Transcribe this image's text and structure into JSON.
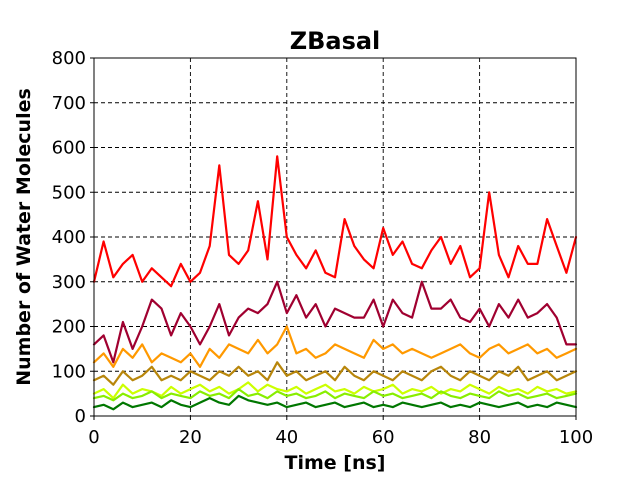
{
  "chart_data": {
    "type": "line",
    "title": "ZBasal",
    "xlabel": "Time [ns]",
    "ylabel": "Number of Water Molecules",
    "xlim": [
      0,
      100
    ],
    "ylim": [
      0,
      800
    ],
    "xticks": [
      0,
      20,
      40,
      60,
      80,
      100
    ],
    "yticks": [
      0,
      100,
      200,
      300,
      400,
      500,
      600,
      700,
      800
    ],
    "grid": true,
    "series": [
      {
        "color": "#ff0000",
        "x": [
          0,
          2,
          4,
          6,
          8,
          10,
          12,
          14,
          16,
          18,
          20,
          22,
          24,
          26,
          28,
          30,
          32,
          34,
          36,
          38,
          40,
          42,
          44,
          46,
          48,
          50,
          52,
          54,
          56,
          58,
          60,
          62,
          64,
          66,
          68,
          70,
          72,
          74,
          76,
          78,
          80,
          82,
          84,
          86,
          88,
          90,
          92,
          94,
          96,
          98,
          100
        ],
        "values": [
          300,
          390,
          310,
          340,
          360,
          300,
          330,
          310,
          290,
          340,
          300,
          320,
          380,
          560,
          360,
          340,
          370,
          480,
          350,
          580,
          400,
          360,
          330,
          370,
          320,
          310,
          440,
          380,
          350,
          330,
          420,
          360,
          390,
          340,
          330,
          370,
          400,
          340,
          380,
          310,
          330,
          500,
          360,
          310,
          380,
          340,
          340,
          440,
          380,
          320,
          400
        ]
      },
      {
        "color": "#a00030",
        "x": [
          0,
          2,
          4,
          6,
          8,
          10,
          12,
          14,
          16,
          18,
          20,
          22,
          24,
          26,
          28,
          30,
          32,
          34,
          36,
          38,
          40,
          42,
          44,
          46,
          48,
          50,
          52,
          54,
          56,
          58,
          60,
          62,
          64,
          66,
          68,
          70,
          72,
          74,
          76,
          78,
          80,
          82,
          84,
          86,
          88,
          90,
          92,
          94,
          96,
          98,
          100
        ],
        "values": [
          160,
          180,
          120,
          210,
          150,
          200,
          260,
          240,
          180,
          230,
          200,
          160,
          200,
          250,
          180,
          220,
          240,
          230,
          250,
          300,
          230,
          270,
          220,
          250,
          200,
          240,
          230,
          220,
          220,
          260,
          200,
          260,
          230,
          220,
          300,
          240,
          240,
          260,
          220,
          210,
          240,
          200,
          250,
          220,
          260,
          220,
          230,
          250,
          220,
          160,
          160
        ]
      },
      {
        "color": "#ff9900",
        "x": [
          0,
          2,
          4,
          6,
          8,
          10,
          12,
          14,
          16,
          18,
          20,
          22,
          24,
          26,
          28,
          30,
          32,
          34,
          36,
          38,
          40,
          42,
          44,
          46,
          48,
          50,
          52,
          54,
          56,
          58,
          60,
          62,
          64,
          66,
          68,
          70,
          72,
          74,
          76,
          78,
          80,
          82,
          84,
          86,
          88,
          90,
          92,
          94,
          96,
          98,
          100
        ],
        "values": [
          120,
          140,
          110,
          150,
          130,
          160,
          120,
          140,
          130,
          120,
          140,
          110,
          150,
          130,
          160,
          150,
          140,
          170,
          140,
          160,
          200,
          140,
          150,
          130,
          140,
          160,
          150,
          140,
          130,
          170,
          150,
          160,
          140,
          150,
          140,
          130,
          140,
          150,
          160,
          140,
          130,
          150,
          160,
          140,
          150,
          160,
          140,
          150,
          130,
          140,
          150
        ]
      },
      {
        "color": "#b8860b",
        "x": [
          0,
          2,
          4,
          6,
          8,
          10,
          12,
          14,
          16,
          18,
          20,
          22,
          24,
          26,
          28,
          30,
          32,
          34,
          36,
          38,
          40,
          42,
          44,
          46,
          48,
          50,
          52,
          54,
          56,
          58,
          60,
          62,
          64,
          66,
          68,
          70,
          72,
          74,
          76,
          78,
          80,
          82,
          84,
          86,
          88,
          90,
          92,
          94,
          96,
          98,
          100
        ],
        "values": [
          80,
          90,
          70,
          100,
          80,
          90,
          110,
          80,
          90,
          80,
          100,
          90,
          80,
          100,
          90,
          110,
          90,
          100,
          80,
          120,
          90,
          100,
          80,
          90,
          100,
          80,
          110,
          90,
          80,
          100,
          90,
          80,
          100,
          90,
          80,
          100,
          110,
          90,
          80,
          100,
          90,
          80,
          100,
          90,
          110,
          80,
          90,
          100,
          80,
          90,
          100
        ]
      },
      {
        "color": "#ccff00",
        "x": [
          0,
          2,
          4,
          6,
          8,
          10,
          12,
          14,
          16,
          18,
          20,
          22,
          24,
          26,
          28,
          30,
          32,
          34,
          36,
          38,
          40,
          42,
          44,
          46,
          48,
          50,
          52,
          54,
          56,
          58,
          60,
          62,
          64,
          66,
          68,
          70,
          72,
          74,
          76,
          78,
          80,
          82,
          84,
          86,
          88,
          90,
          92,
          94,
          96,
          98,
          100
        ],
        "values": [
          50,
          60,
          40,
          70,
          50,
          60,
          55,
          45,
          65,
          50,
          60,
          70,
          55,
          65,
          50,
          60,
          75,
          55,
          70,
          60,
          55,
          65,
          50,
          60,
          70,
          55,
          60,
          50,
          65,
          55,
          60,
          70,
          50,
          60,
          55,
          65,
          50,
          60,
          55,
          70,
          60,
          50,
          65,
          55,
          60,
          50,
          65,
          55,
          60,
          50,
          55
        ]
      },
      {
        "color": "#88ee00",
        "x": [
          0,
          2,
          4,
          6,
          8,
          10,
          12,
          14,
          16,
          18,
          20,
          22,
          24,
          26,
          28,
          30,
          32,
          34,
          36,
          38,
          40,
          42,
          44,
          46,
          48,
          50,
          52,
          54,
          56,
          58,
          60,
          62,
          64,
          66,
          68,
          70,
          72,
          74,
          76,
          78,
          80,
          82,
          84,
          86,
          88,
          90,
          92,
          94,
          96,
          98,
          100
        ],
        "values": [
          40,
          45,
          35,
          50,
          40,
          45,
          55,
          40,
          50,
          45,
          40,
          55,
          45,
          50,
          40,
          60,
          45,
          50,
          40,
          55,
          45,
          50,
          40,
          45,
          55,
          40,
          50,
          45,
          40,
          55,
          45,
          50,
          40,
          45,
          50,
          40,
          55,
          45,
          40,
          50,
          45,
          40,
          55,
          45,
          50,
          40,
          45,
          50,
          40,
          45,
          50
        ]
      },
      {
        "color": "#007700",
        "x": [
          0,
          2,
          4,
          6,
          8,
          10,
          12,
          14,
          16,
          18,
          20,
          22,
          24,
          26,
          28,
          30,
          32,
          34,
          36,
          38,
          40,
          42,
          44,
          46,
          48,
          50,
          52,
          54,
          56,
          58,
          60,
          62,
          64,
          66,
          68,
          70,
          72,
          74,
          76,
          78,
          80,
          82,
          84,
          86,
          88,
          90,
          92,
          94,
          96,
          98,
          100
        ],
        "values": [
          20,
          25,
          15,
          30,
          20,
          25,
          30,
          20,
          35,
          25,
          20,
          30,
          40,
          30,
          25,
          45,
          35,
          30,
          25,
          30,
          20,
          25,
          30,
          20,
          25,
          30,
          20,
          25,
          30,
          20,
          25,
          20,
          30,
          25,
          20,
          25,
          30,
          20,
          25,
          20,
          30,
          25,
          20,
          25,
          30,
          20,
          25,
          20,
          30,
          25,
          20
        ]
      }
    ]
  }
}
